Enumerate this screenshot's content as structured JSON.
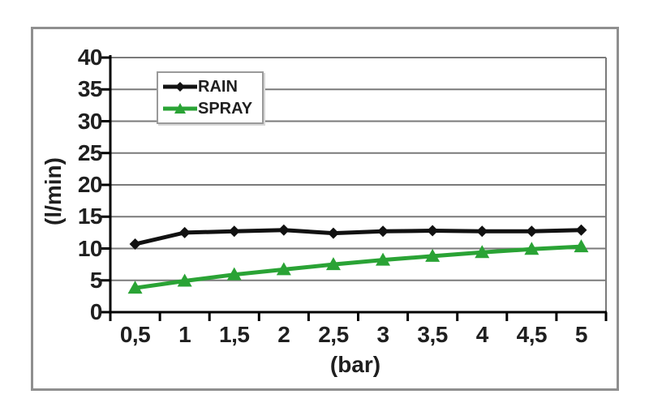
{
  "chart_data": {
    "type": "line",
    "title": "",
    "xlabel": "(bar)",
    "ylabel": "(l/min)",
    "x_tick_labels": [
      "0,5",
      "1",
      "1,5",
      "2",
      "2,5",
      "3",
      "3,5",
      "4",
      "4,5",
      "5"
    ],
    "x_values": [
      0.5,
      1,
      1.5,
      2,
      2.5,
      3,
      3.5,
      4,
      4.5,
      5
    ],
    "y_ticks": [
      0,
      5,
      10,
      15,
      20,
      25,
      30,
      35,
      40
    ],
    "ylim": [
      0,
      40
    ],
    "grid": "horizontal",
    "legend_position": "top-left-inside",
    "series": [
      {
        "name": "RAIN",
        "color": "#111111",
        "marker": "diamond",
        "values": [
          10.7,
          12.5,
          12.7,
          12.9,
          12.4,
          12.7,
          12.8,
          12.7,
          12.7,
          12.9
        ]
      },
      {
        "name": "SPRAY",
        "color": "#2aa335",
        "marker": "triangle-up",
        "values": [
          3.8,
          4.9,
          5.9,
          6.7,
          7.5,
          8.2,
          8.8,
          9.4,
          9.9,
          10.3
        ]
      }
    ]
  },
  "colors": {
    "gridline": "#7a7a7a",
    "axis": "#000000",
    "plot_right_border": "#7a7a7a",
    "frame_border": "#8f8f8f",
    "text": "#1f1f1f",
    "background": "#ffffff"
  }
}
